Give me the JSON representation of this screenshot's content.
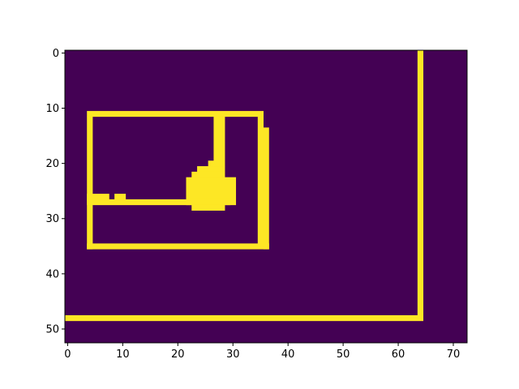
{
  "chart_data": {
    "type": "heatmap",
    "title": "",
    "xlabel": "",
    "ylabel": "",
    "colors": {
      "background": "#440154",
      "foreground": "#fde725"
    },
    "nrows": 53,
    "ncols": 73,
    "xlim": [
      -0.5,
      72.5
    ],
    "ylim": [
      52.5,
      -0.5
    ],
    "xticks": [
      0,
      10,
      20,
      30,
      40,
      50,
      60,
      70
    ],
    "xtick_labels": [
      "0",
      "10",
      "20",
      "30",
      "40",
      "50",
      "60",
      "70"
    ],
    "yticks": [
      0,
      10,
      20,
      30,
      40,
      50
    ],
    "ytick_labels": [
      "0",
      "10",
      "20",
      "30",
      "40",
      "50"
    ],
    "grid": false,
    "legend": "none",
    "cells_value": 1,
    "cells": [
      [
        0,
        64,
        47,
        64
      ],
      [
        48,
        0,
        48,
        64
      ],
      [
        11,
        4,
        11,
        35
      ],
      [
        12,
        4,
        35,
        4
      ],
      [
        35,
        4,
        35,
        36
      ],
      [
        12,
        35,
        34,
        35
      ],
      [
        14,
        36,
        35,
        36
      ],
      [
        12,
        27,
        20,
        28
      ],
      [
        20,
        26,
        20,
        27
      ],
      [
        21,
        24,
        21,
        28
      ],
      [
        22,
        23,
        22,
        28
      ],
      [
        23,
        22,
        27,
        30
      ],
      [
        26,
        4,
        26,
        7
      ],
      [
        26,
        9,
        26,
        10
      ],
      [
        27,
        4,
        27,
        29
      ],
      [
        28,
        23,
        28,
        28
      ]
    ]
  }
}
